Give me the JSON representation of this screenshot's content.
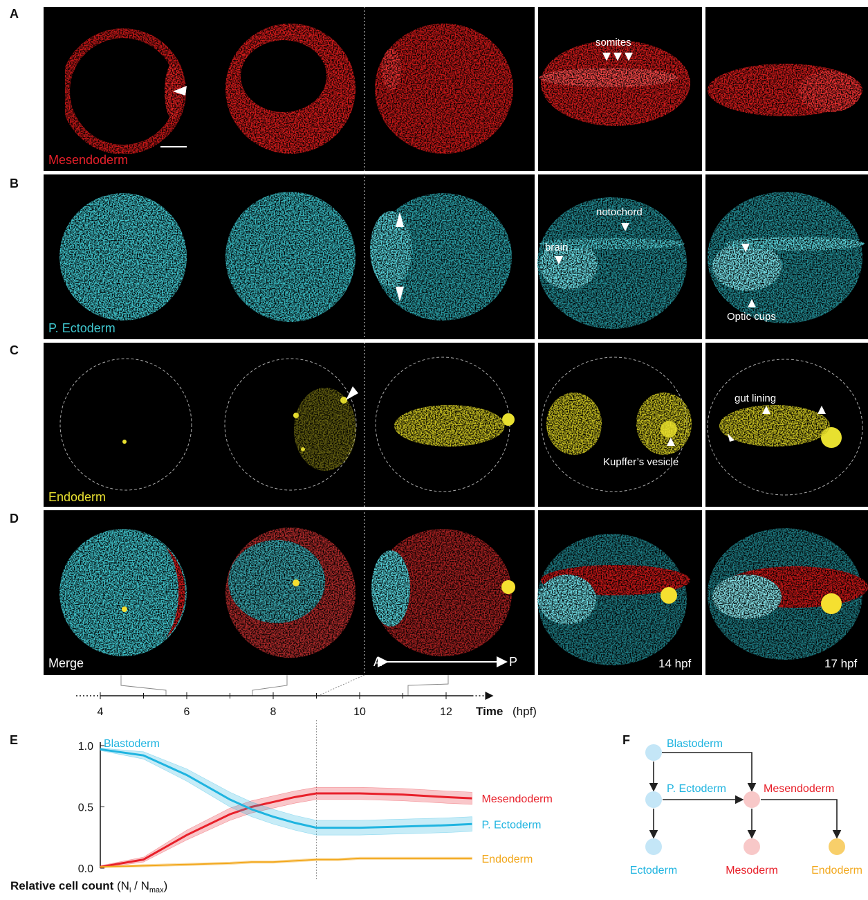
{
  "panels": [
    {
      "letter": "A",
      "label": "Mesendoderm"
    },
    {
      "letter": "B",
      "label": "P. Ectoderm"
    },
    {
      "letter": "C",
      "label": "Endoderm"
    },
    {
      "letter": "D",
      "label": "Merge"
    }
  ],
  "annotations": {
    "somites": "somites",
    "notochord": "notochord",
    "brain": "brain",
    "optic_cups": "Optic cups",
    "gut_lining": "gut lining",
    "kupffer": "Kupffer’s vesicle",
    "anterior": "A",
    "posterior": "P",
    "stage_14": "14 hpf",
    "stage_17": "17 hpf"
  },
  "chart_data": {
    "type": "line",
    "letter": "E",
    "x_title": "Time",
    "x_unit": "(hpf)",
    "y_title": [
      "Relative cell count",
      "(N",
      "i",
      " / N",
      "max",
      ")"
    ],
    "xlim": [
      4,
      12.6
    ],
    "xticks": [
      4,
      6,
      8,
      10,
      12
    ],
    "xminor": [
      5,
      7,
      9,
      11
    ],
    "ylim": [
      0,
      1
    ],
    "yticks": [
      {
        "value": 0,
        "label": "0.0"
      },
      0.5,
      {
        "value": 1,
        "label": "1.0"
      }
    ],
    "annotation": "Blastoderm",
    "x": [
      4,
      5,
      6,
      7,
      7.5,
      8,
      8.5,
      9,
      9.5,
      10,
      11,
      12,
      12.6
    ],
    "series": [
      {
        "name": "Mesendoderm",
        "color": "#e8202a",
        "values": [
          0.01,
          0.07,
          0.27,
          0.44,
          0.5,
          0.54,
          0.58,
          0.61,
          0.61,
          0.61,
          0.6,
          0.58,
          0.57
        ],
        "errors": [
          0.01,
          0.02,
          0.04,
          0.05,
          0.05,
          0.05,
          0.05,
          0.05,
          0.05,
          0.05,
          0.05,
          0.05,
          0.05
        ]
      },
      {
        "name": "P. Ectoderm",
        "color": "#1fb4e0",
        "values": [
          0.97,
          0.92,
          0.76,
          0.56,
          0.48,
          0.42,
          0.37,
          0.33,
          0.33,
          0.33,
          0.34,
          0.35,
          0.36
        ],
        "errors": [
          0.01,
          0.03,
          0.05,
          0.06,
          0.06,
          0.06,
          0.06,
          0.06,
          0.06,
          0.06,
          0.06,
          0.06,
          0.06
        ]
      },
      {
        "name": "Endoderm",
        "color": "#f2a81d",
        "values": [
          0.01,
          0.02,
          0.03,
          0.04,
          0.05,
          0.05,
          0.06,
          0.07,
          0.07,
          0.08,
          0.08,
          0.08,
          0.08
        ],
        "errors": [
          0.005,
          0.01,
          0.01,
          0.01,
          0.01,
          0.01,
          0.01,
          0.01,
          0.01,
          0.01,
          0.01,
          0.01,
          0.01
        ]
      }
    ]
  },
  "diagram": {
    "letter": "F",
    "nodes": [
      {
        "label": "Blastoderm",
        "color": "#c4e6f7",
        "text_color": "#1fb4e0"
      },
      {
        "label": "P. Ectoderm",
        "color": "#c4e6f7",
        "text_color": "#1fb4e0"
      },
      {
        "label": "Mesendoderm",
        "color": "#f8c8c8",
        "text_color": "#e8202a"
      },
      {
        "label": "Ectoderm",
        "color": "#c4e6f7",
        "text_color": "#1fb4e0"
      },
      {
        "label": "Mesoderm",
        "color": "#f8c8c8",
        "text_color": "#e8202a"
      },
      {
        "label": "Endoderm",
        "color": "#f8cf6a",
        "text_color": "#f2a81d"
      }
    ]
  }
}
